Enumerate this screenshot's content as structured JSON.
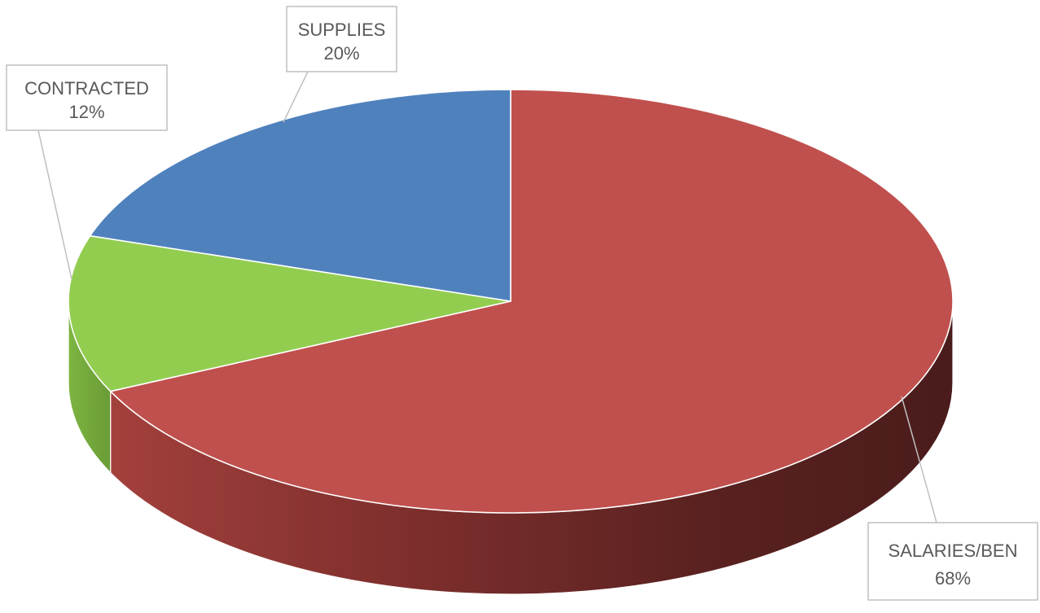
{
  "chart_data": {
    "type": "pie",
    "style": "3d",
    "legend": "none",
    "slices": [
      {
        "label": "SALARIES/BEN",
        "value": 68,
        "value_label": "68%",
        "color": "#C0504D"
      },
      {
        "label": "CONTRACTED",
        "value": 12,
        "value_label": "12%",
        "color": "#92CD50"
      },
      {
        "label": "SUPPLIES",
        "value": 20,
        "value_label": "20%",
        "color": "#4F81BD"
      }
    ]
  }
}
